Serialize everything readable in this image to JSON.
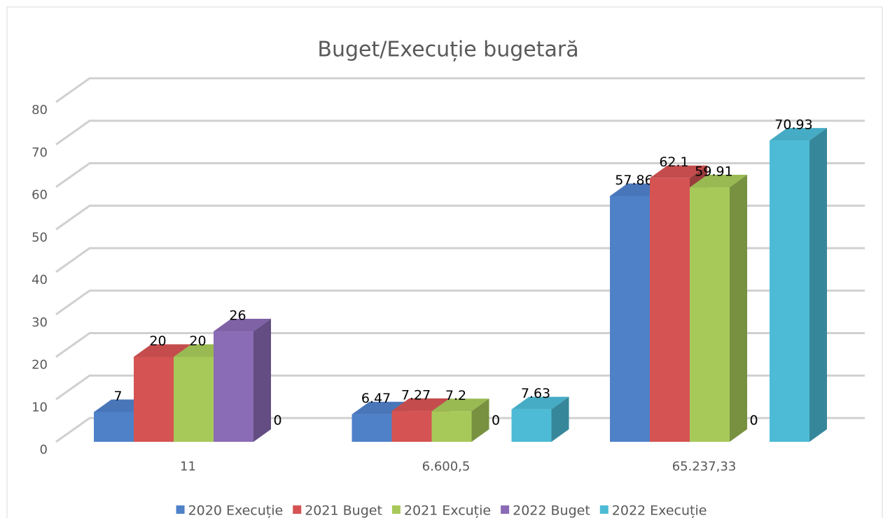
{
  "chart_data": {
    "type": "bar3d",
    "title": "Buget/Execuție bugetară",
    "categories": [
      "11",
      "6.600,5",
      "65.237,33"
    ],
    "series": [
      {
        "name": "2020 Execuție",
        "color": "#4f81c9",
        "values": [
          7,
          6.47,
          57.86
        ]
      },
      {
        "name": "2021 Buget",
        "color": "#d55353",
        "values": [
          20,
          7.27,
          62.1
        ]
      },
      {
        "name": "2021 Excuție",
        "color": "#a7c95a",
        "values": [
          20,
          7.2,
          59.91
        ]
      },
      {
        "name": "2022 Buget",
        "color": "#8a6bb5",
        "values": [
          26,
          0,
          0
        ]
      },
      {
        "name": "2022 Execuție",
        "color": "#4dbbd6",
        "values": [
          0,
          7.63,
          70.93
        ]
      }
    ],
    "ylim": [
      0,
      80
    ],
    "yticks": [
      0,
      10,
      20,
      30,
      40,
      50,
      60,
      70,
      80
    ],
    "grid": true,
    "legend": "bottom"
  }
}
